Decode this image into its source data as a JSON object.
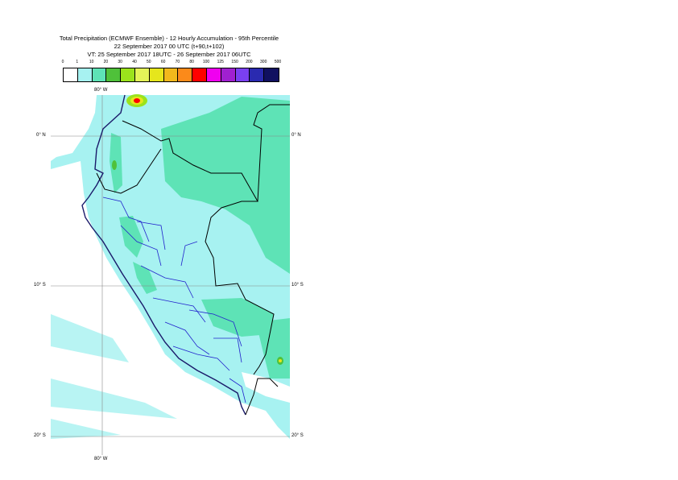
{
  "title": {
    "line1": "Total Precipitation (ECMWF Ensemble) - 12 Hourly Accumulation - 95th Percentile",
    "line2": "22 September 2017 00 UTC (t+90,t+102)",
    "line3": "VT: 25 September 2017 18UTC - 26 September 2017 06UTC"
  },
  "legend": {
    "thresholds": [
      "0",
      "1",
      "10",
      "20",
      "30",
      "40",
      "50",
      "60",
      "70",
      "80",
      "100",
      "125",
      "150",
      "200",
      "300",
      "500"
    ],
    "colors": [
      "#ffffff",
      "#a7f2f1",
      "#5ee3b6",
      "#4fc13a",
      "#9be31c",
      "#e4f458",
      "#e6e61c",
      "#f2b81c",
      "#fb8a1a",
      "#ff0000",
      "#f000f0",
      "#a020d0",
      "#7a40f0",
      "#2a2ab0",
      "#101060"
    ]
  },
  "axes": {
    "lon_top": "80° W",
    "lon_bottom": "80° W",
    "lat_labels": {
      "eq_left": "0° N",
      "eq_right": "0° N",
      "s10_left": "10° S",
      "s10_right": "10° S",
      "s20_left": "20° S",
      "s20_right": "20° S"
    }
  },
  "map": {
    "ocean_color": "#a7f2f1",
    "heavy_color": "#5ee3b6",
    "coast_color": "#1a1a6a",
    "border_color": "#000000",
    "admin_color": "#2222cc"
  }
}
